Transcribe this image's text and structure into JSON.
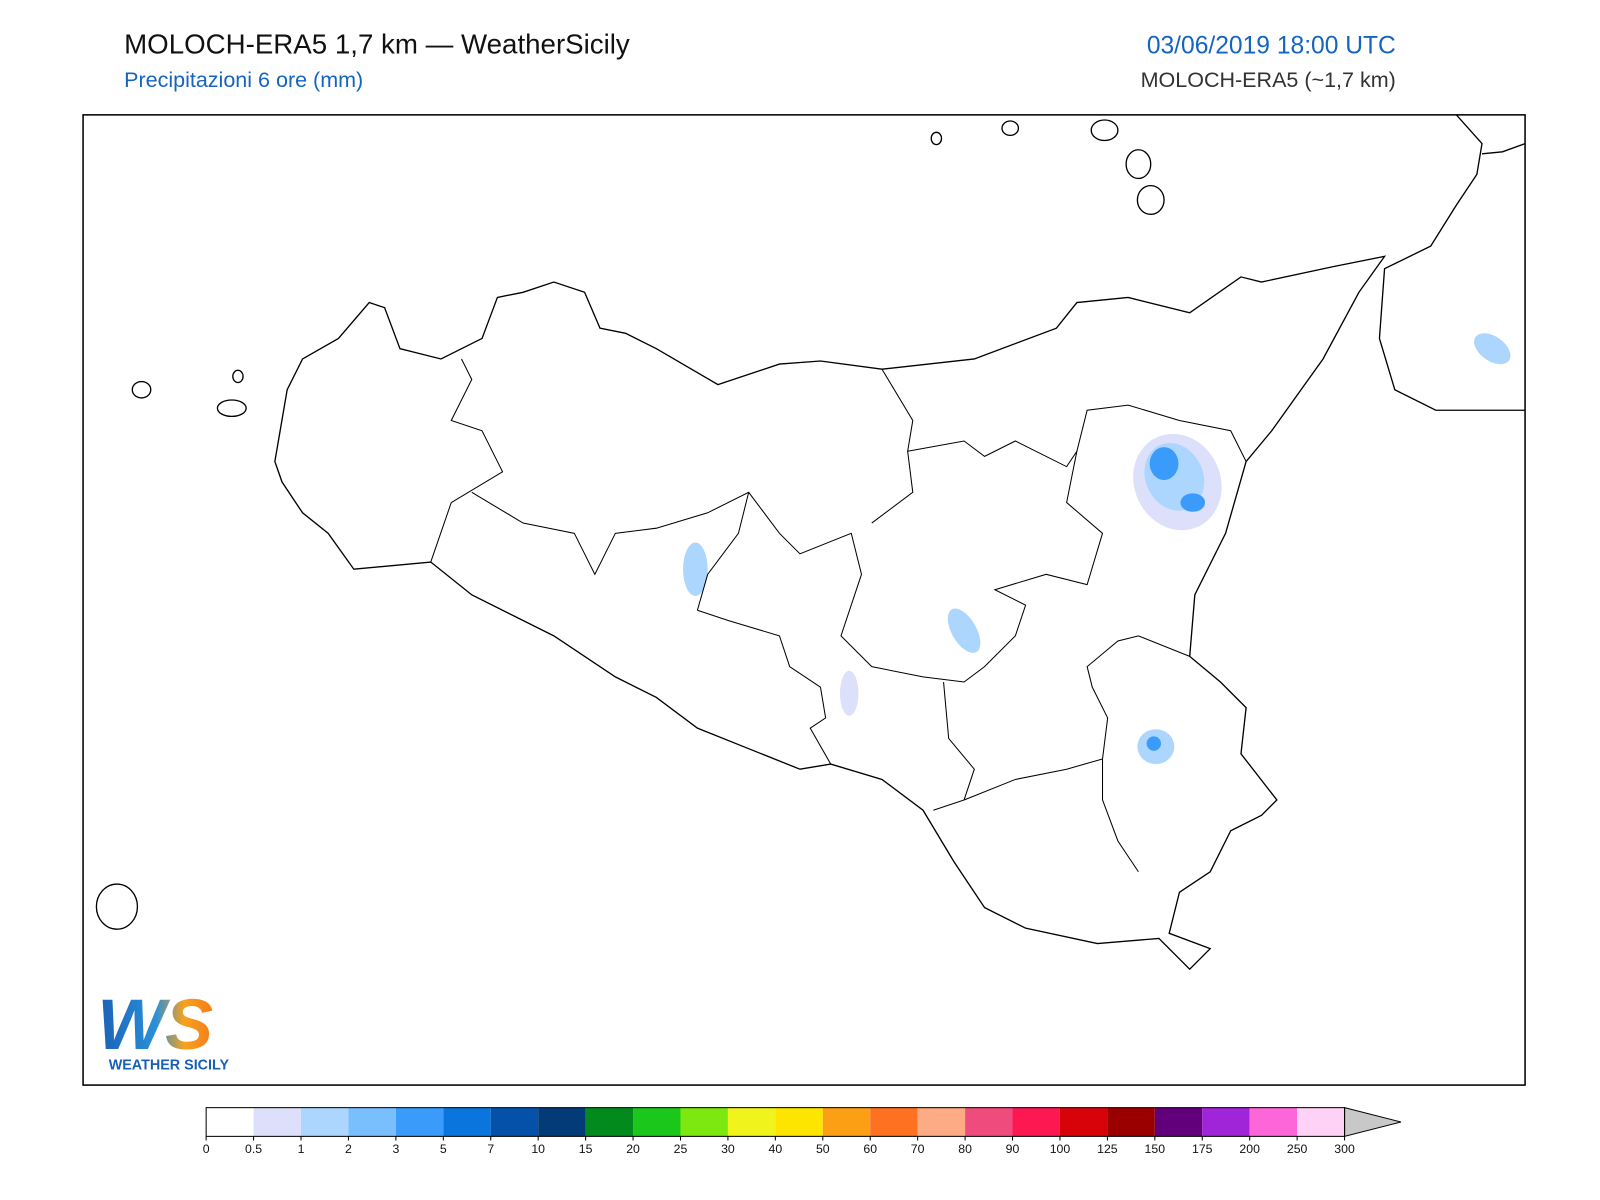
{
  "header": {
    "title": "MOLOCH-ERA5 1,7 km — WeatherSicily",
    "subtitle": "Precipitazioni 6 ore (mm)",
    "datetime": "03/06/2019 18:00 UTC",
    "model": "MOLOCH-ERA5 (~1,7 km)"
  },
  "logo": {
    "mark": "WS",
    "name": "WEATHER SICILY"
  },
  "colorbar": {
    "ticks": [
      0,
      0.5,
      1,
      2,
      3,
      5,
      7,
      10,
      15,
      20,
      25,
      30,
      40,
      50,
      60,
      70,
      80,
      90,
      100,
      125,
      150,
      175,
      200,
      250,
      300
    ],
    "colors": [
      "#ffffff",
      "#dde0fb",
      "#acd6fd",
      "#79bffd",
      "#3b9bfb",
      "#0a75dd",
      "#0550a8",
      "#033a78",
      "#028a1c",
      "#1cc71c",
      "#7de80f",
      "#f1f41c",
      "#fde500",
      "#fd9f14",
      "#fd7120",
      "#fdab84",
      "#ef4c7d",
      "#fd1851",
      "#d80309",
      "#9a0000",
      "#62007c",
      "#a024d8",
      "#fd66d8",
      "#fdd2f6"
    ],
    "over_color": "#c8c8c8"
  }
}
